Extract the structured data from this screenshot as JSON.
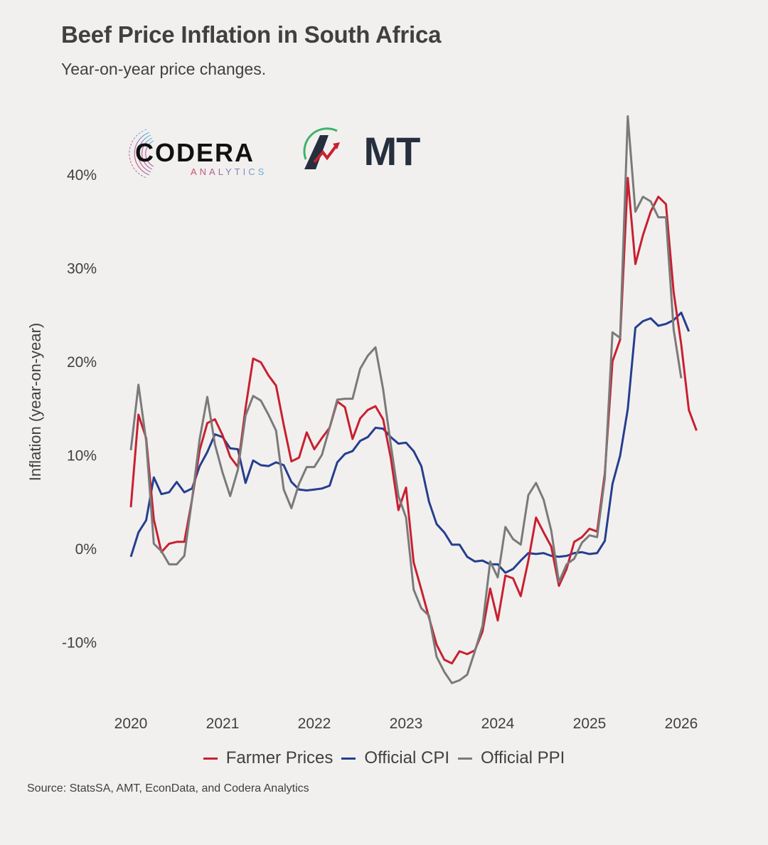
{
  "header": {
    "title": "Beef Price Inflation in South Africa",
    "subtitle": "Year-on-year price changes."
  },
  "logos": {
    "codera_word": "CODERA",
    "codera_sub": "ANALYTICS",
    "amt_word": "AMT"
  },
  "footer": {
    "source": "Source: StatsSA, AMT, EconData, and Codera Analytics"
  },
  "chart_data": {
    "type": "line",
    "title": "Beef Price Inflation in South Africa",
    "subtitle": "Year-on-year price changes.",
    "xlabel": "",
    "ylabel": "Inflation (year-on-year)",
    "x_start": "2020-01",
    "x_frequency": "monthly",
    "xlim": [
      2020,
      2026.3
    ],
    "ylim": [
      -15,
      47
    ],
    "x_ticks": [
      2020,
      2021,
      2022,
      2023,
      2024,
      2025,
      2026
    ],
    "x_tick_labels": [
      "2020",
      "2021",
      "2022",
      "2023",
      "2024",
      "2025",
      "2026"
    ],
    "y_ticks": [
      -10,
      0,
      10,
      20,
      30,
      40
    ],
    "y_tick_labels": [
      "-10%",
      "0%",
      "10%",
      "20%",
      "30%",
      "40%"
    ],
    "grid": false,
    "legend_position": "bottom",
    "series": [
      {
        "name": "Farmer Prices",
        "color": "#c8202f",
        "values": [
          4.4,
          14.3,
          11.8,
          3.1,
          -0.4,
          0.5,
          0.7,
          0.7,
          5.2,
          10.5,
          13.4,
          13.8,
          12.1,
          9.8,
          8.7,
          15.0,
          20.3,
          19.9,
          18.5,
          17.4,
          13.2,
          9.3,
          9.7,
          12.4,
          10.6,
          11.8,
          12.9,
          15.7,
          15.1,
          11.7,
          13.9,
          14.8,
          15.2,
          13.8,
          9.7,
          4.1,
          6.5,
          -1.5,
          -4.4,
          -7.4,
          -10.3,
          -11.9,
          -12.3,
          -11.0,
          -11.3,
          -10.9,
          -8.9,
          -4.3,
          -7.7,
          -2.9,
          -3.2,
          -5.1,
          -1.3,
          3.3,
          1.7,
          0.2,
          -4.0,
          -2.2,
          0.7,
          1.2,
          2.1,
          1.8,
          8.0,
          20.0,
          22.3,
          39.6,
          30.4,
          33.5,
          36.0,
          37.6,
          36.8,
          27.4,
          21.8,
          14.8,
          12.6
        ]
      },
      {
        "name": "Official CPI",
        "color": "#253f8e",
        "values": [
          -0.9,
          1.7,
          3.0,
          7.6,
          5.8,
          6.0,
          7.1,
          6.0,
          6.4,
          8.8,
          10.3,
          12.2,
          11.9,
          10.7,
          10.6,
          7.0,
          9.4,
          8.9,
          8.8,
          9.2,
          8.9,
          7.1,
          6.3,
          6.2,
          6.3,
          6.4,
          6.7,
          9.2,
          10.1,
          10.4,
          11.5,
          11.9,
          12.9,
          12.8,
          11.9,
          11.2,
          11.3,
          10.4,
          8.8,
          5.0,
          2.6,
          1.7,
          0.4,
          0.4,
          -0.9,
          -1.4,
          -1.3,
          -1.7,
          -1.7,
          -2.6,
          -2.2,
          -1.3,
          -0.5,
          -0.6,
          -0.5,
          -0.8,
          -0.9,
          -0.8,
          -0.5,
          -0.4,
          -0.6,
          -0.5,
          0.8,
          6.9,
          9.9,
          14.9,
          23.6,
          24.3,
          24.6,
          23.8,
          24.0,
          24.4,
          25.2,
          23.2
        ]
      },
      {
        "name": "Official PPI",
        "color": "#7a7a7a",
        "values": [
          10.5,
          17.5,
          11.5,
          0.5,
          -0.3,
          -1.7,
          -1.7,
          -0.8,
          5.2,
          11.7,
          16.2,
          11.1,
          8.1,
          5.6,
          8.4,
          14.2,
          16.3,
          15.8,
          14.3,
          12.6,
          6.3,
          4.3,
          6.9,
          8.7,
          8.7,
          10.0,
          12.9,
          15.9,
          16.0,
          16.0,
          19.2,
          20.6,
          21.5,
          17.0,
          11.1,
          5.6,
          3.3,
          -4.4,
          -6.4,
          -7.2,
          -11.6,
          -13.2,
          -14.4,
          -14.1,
          -13.5,
          -11.0,
          -8.3,
          -1.4,
          -3.1,
          2.3,
          1.0,
          0.4,
          5.7,
          7.0,
          5.2,
          1.9,
          -3.6,
          -1.7,
          -1.1,
          0.6,
          1.4,
          1.2,
          7.5,
          23.1,
          22.5,
          46.2,
          36.0,
          37.6,
          37.1,
          35.4,
          35.4,
          23.4,
          18.2
        ]
      }
    ]
  }
}
